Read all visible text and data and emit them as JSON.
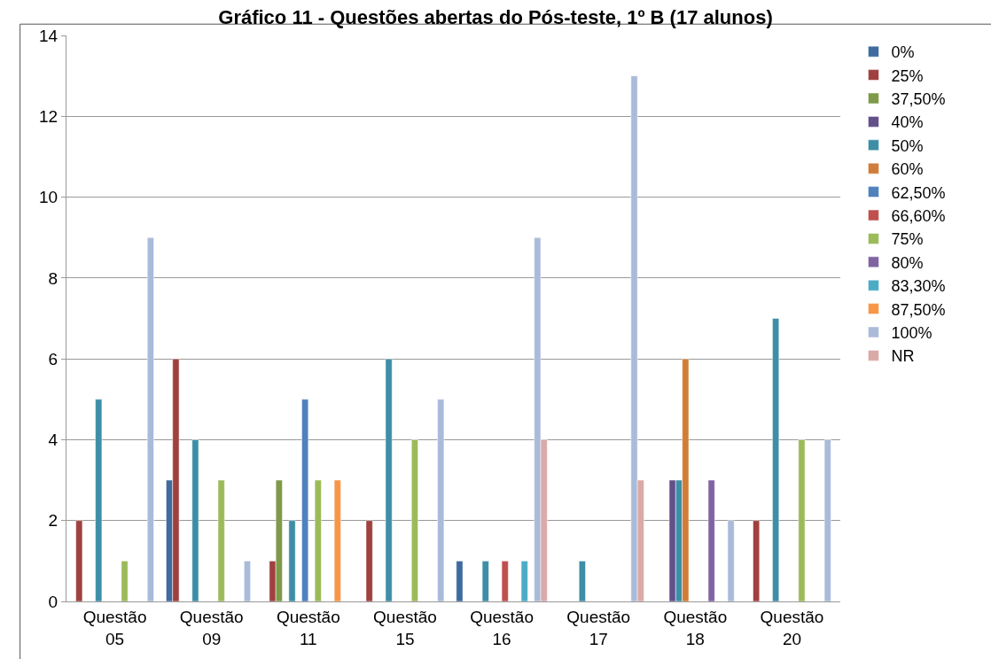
{
  "chart_data": {
    "type": "bar",
    "title": "Gráfico 11 - Questões abertas do Pós-teste, 1º B (17 alunos)",
    "categories": [
      "Questão 05",
      "Questão 09",
      "Questão 11",
      "Questão 15",
      "Questão 16",
      "Questão 17",
      "Questão 18",
      "Questão 20"
    ],
    "ylim": [
      0,
      14
    ],
    "yticks": [
      0,
      2,
      4,
      6,
      8,
      10,
      12,
      14
    ],
    "grid": "y",
    "legend": "right",
    "series": [
      {
        "name": "0%",
        "color": "#3f6b9e",
        "values": [
          null,
          3,
          null,
          null,
          1,
          null,
          null,
          null
        ]
      },
      {
        "name": "25%",
        "color": "#a0413f",
        "values": [
          2,
          6,
          1,
          2,
          null,
          null,
          null,
          2
        ]
      },
      {
        "name": "37,50%",
        "color": "#7f9a48",
        "values": [
          null,
          null,
          3,
          null,
          null,
          null,
          null,
          null
        ]
      },
      {
        "name": "40%",
        "color": "#634f89",
        "values": [
          null,
          null,
          null,
          null,
          null,
          null,
          3,
          null
        ]
      },
      {
        "name": "50%",
        "color": "#3d8ea6",
        "values": [
          5,
          4,
          2,
          6,
          1,
          1,
          3,
          7
        ]
      },
      {
        "name": "60%",
        "color": "#d07d37",
        "values": [
          null,
          null,
          null,
          null,
          null,
          null,
          6,
          null
        ]
      },
      {
        "name": "62,50%",
        "color": "#4f81bd",
        "values": [
          null,
          null,
          5,
          null,
          null,
          null,
          null,
          null
        ]
      },
      {
        "name": "66,60%",
        "color": "#c0504d",
        "values": [
          null,
          null,
          null,
          null,
          1,
          null,
          null,
          null
        ]
      },
      {
        "name": "75%",
        "color": "#9bbb59",
        "values": [
          1,
          3,
          3,
          4,
          null,
          null,
          null,
          4
        ]
      },
      {
        "name": "80%",
        "color": "#8064a2",
        "values": [
          null,
          null,
          null,
          null,
          null,
          null,
          3,
          null
        ]
      },
      {
        "name": "83,30%",
        "color": "#4bacc6",
        "values": [
          null,
          null,
          null,
          null,
          1,
          null,
          null,
          null
        ]
      },
      {
        "name": "87,50%",
        "color": "#f79646",
        "values": [
          null,
          null,
          3,
          null,
          null,
          null,
          null,
          null
        ]
      },
      {
        "name": "100%",
        "color": "#aabbd9",
        "values": [
          9,
          1,
          null,
          5,
          9,
          13,
          2,
          4
        ]
      },
      {
        "name": "NR",
        "color": "#dba9a8",
        "values": [
          null,
          null,
          null,
          null,
          4,
          3,
          null,
          null
        ]
      }
    ]
  }
}
